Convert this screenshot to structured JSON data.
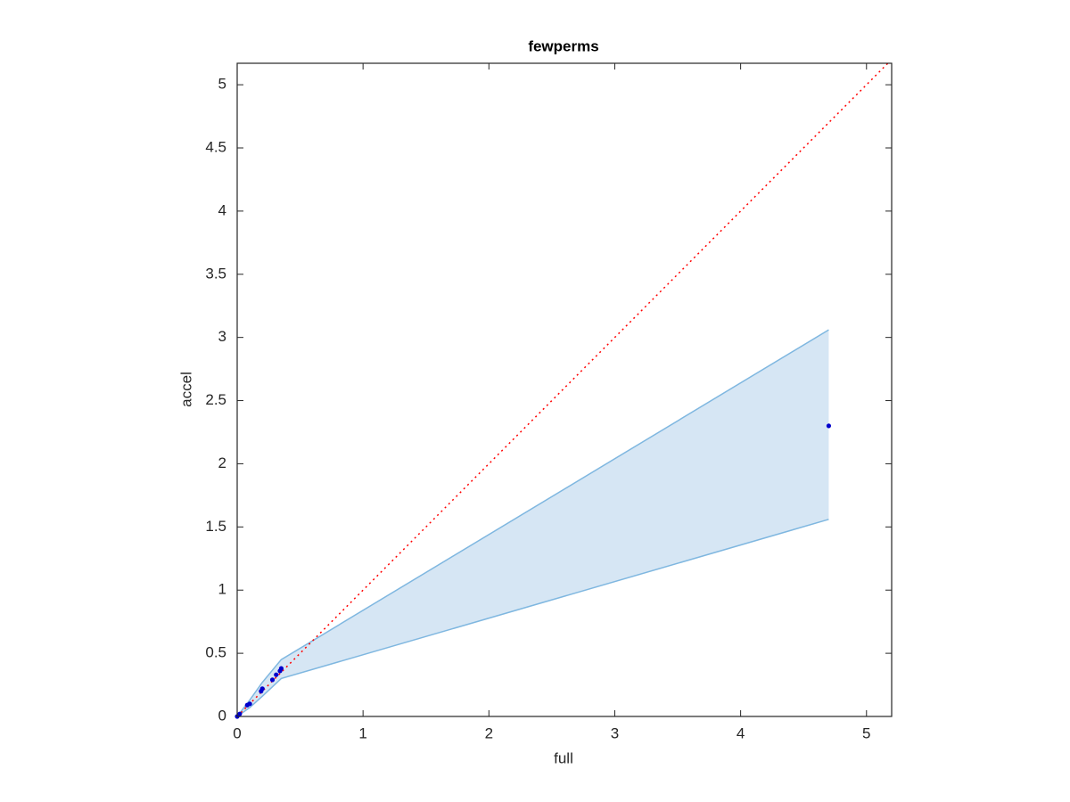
{
  "chart_data": {
    "type": "scatter",
    "title": "fewperms",
    "x_label": "full",
    "y_label": "accel",
    "xlim": [
      0,
      5.2
    ],
    "ylim": [
      0,
      5.17
    ],
    "xticks": [
      0,
      1,
      2,
      3,
      4,
      5
    ],
    "yticks": [
      0,
      0.5,
      1,
      1.5,
      2,
      2.5,
      3,
      3.5,
      4,
      4.5,
      5
    ],
    "grid": false,
    "series": [
      {
        "color": "#0000cc",
        "x": [
          0,
          0.02,
          0.08,
          0.1,
          0.19,
          0.2,
          0.28,
          0.31,
          0.34,
          0.35,
          4.7
        ],
        "values": [
          0,
          0.02,
          0.09,
          0.1,
          0.2,
          0.22,
          0.29,
          0.33,
          0.36,
          0.38,
          2.3
        ]
      }
    ],
    "bands": [
      {
        "color": "#7fb7e0",
        "fill": "#d6e6f4",
        "x": [
          0,
          0.1,
          0.2,
          0.35,
          4.7
        ],
        "upper": [
          0,
          0.13,
          0.27,
          0.45,
          3.06
        ],
        "lower": [
          0,
          0.07,
          0.16,
          0.3,
          1.56
        ]
      }
    ],
    "reference_line": {
      "color": "#ff0000",
      "x": [
        0,
        5.17
      ],
      "values": [
        0,
        5.17
      ]
    }
  }
}
